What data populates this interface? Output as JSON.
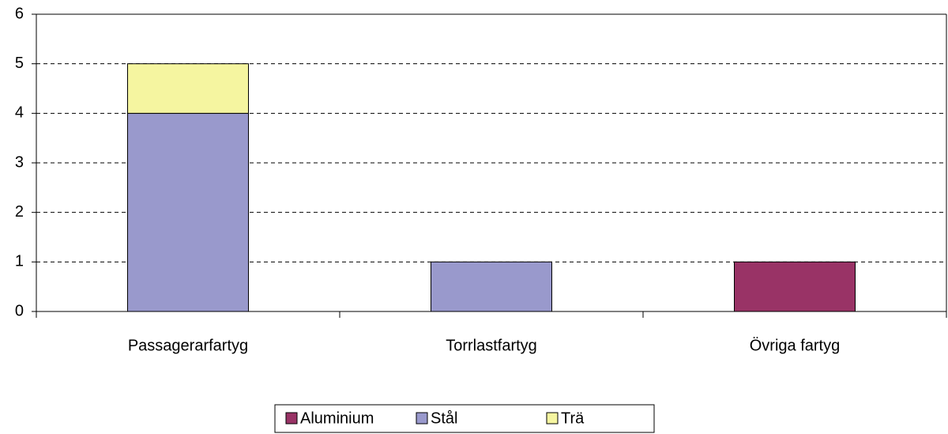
{
  "chart_data": {
    "type": "stacked_bar",
    "categories": [
      "Passagerarfartyg",
      "Torrlastfartyg",
      "Övriga fartyg"
    ],
    "series": [
      {
        "name": "Aluminium",
        "color": "#993366",
        "values": [
          0,
          0,
          1
        ]
      },
      {
        "name": "Stål",
        "color": "#9999cc",
        "values": [
          4,
          1,
          0
        ]
      },
      {
        "name": "Trä",
        "color": "#f5f5a0",
        "values": [
          1,
          0,
          0
        ]
      }
    ],
    "ylim": [
      0,
      6
    ],
    "yticks": [
      0,
      1,
      2,
      3,
      4,
      5,
      6
    ],
    "grid": true,
    "legend": "bottom"
  }
}
